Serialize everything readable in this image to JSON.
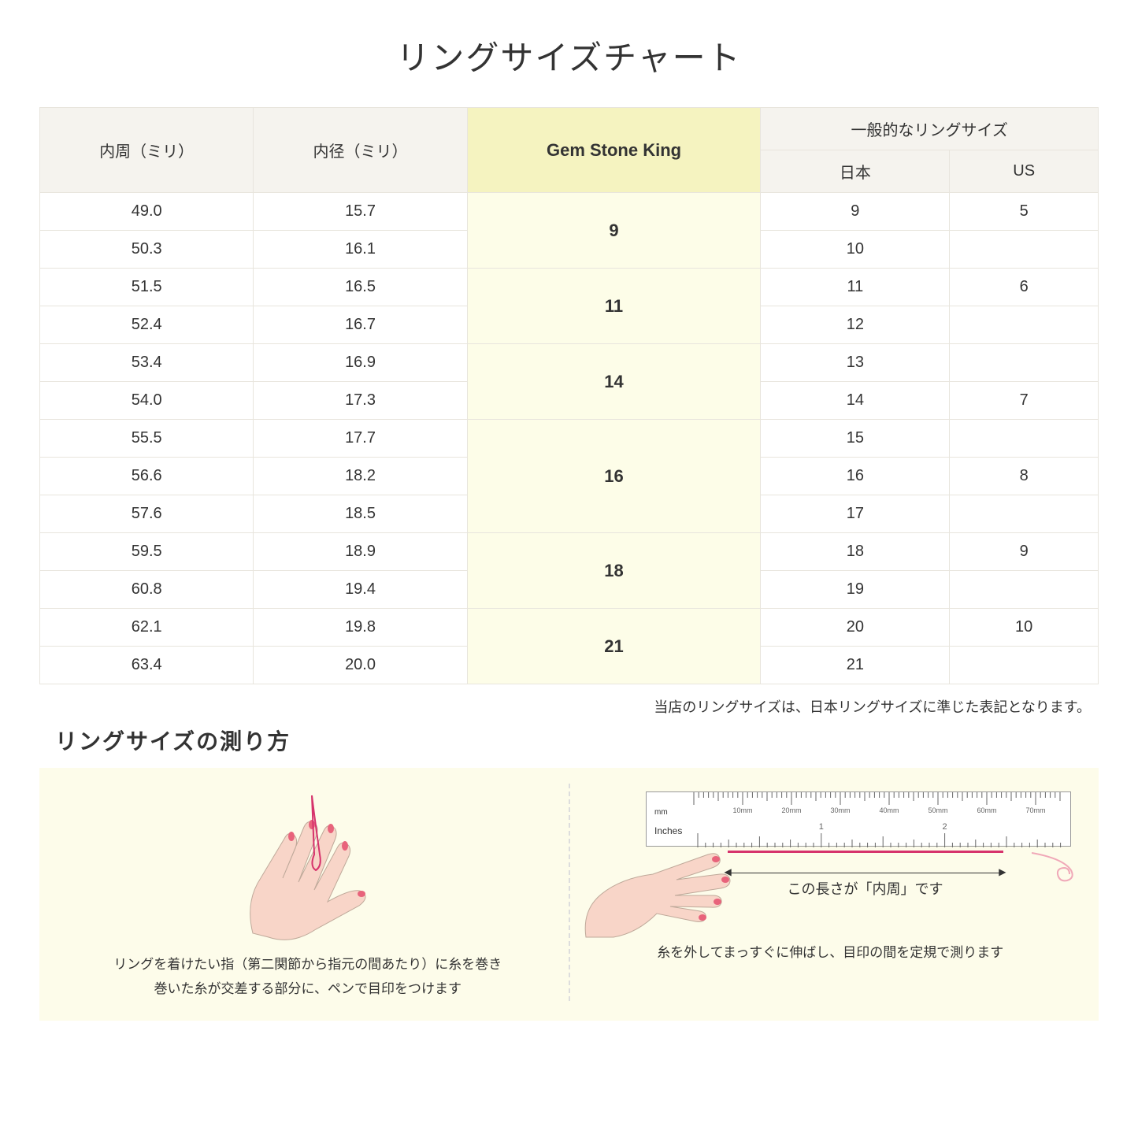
{
  "title": "リングサイズチャート",
  "headers": {
    "circumference": "内周（ミリ）",
    "diameter": "内径（ミリ）",
    "gsk": "Gem Stone King",
    "general": "一般的なリングサイズ",
    "japan": "日本",
    "us": "US"
  },
  "rows": [
    {
      "circ": "49.0",
      "dia": "15.7",
      "gsk": "9",
      "gsk_span": 2,
      "jp": "9",
      "us": "5"
    },
    {
      "circ": "50.3",
      "dia": "16.1",
      "jp": "10",
      "us": ""
    },
    {
      "circ": "51.5",
      "dia": "16.5",
      "gsk": "11",
      "gsk_span": 2,
      "jp": "11",
      "us": "6"
    },
    {
      "circ": "52.4",
      "dia": "16.7",
      "jp": "12",
      "us": ""
    },
    {
      "circ": "53.4",
      "dia": "16.9",
      "gsk": "14",
      "gsk_span": 2,
      "jp": "13",
      "us": ""
    },
    {
      "circ": "54.0",
      "dia": "17.3",
      "jp": "14",
      "us": "7"
    },
    {
      "circ": "55.5",
      "dia": "17.7",
      "gsk": "16",
      "gsk_span": 3,
      "jp": "15",
      "us": ""
    },
    {
      "circ": "56.6",
      "dia": "18.2",
      "jp": "16",
      "us": "8"
    },
    {
      "circ": "57.6",
      "dia": "18.5",
      "jp": "17",
      "us": ""
    },
    {
      "circ": "59.5",
      "dia": "18.9",
      "gsk": "18",
      "gsk_span": 2,
      "jp": "18",
      "us": "9"
    },
    {
      "circ": "60.8",
      "dia": "19.4",
      "jp": "19",
      "us": ""
    },
    {
      "circ": "62.1",
      "dia": "19.8",
      "gsk": "21",
      "gsk_span": 2,
      "jp": "20",
      "us": "10"
    },
    {
      "circ": "63.4",
      "dia": "20.0",
      "jp": "21",
      "us": ""
    }
  ],
  "note": "当店のリングサイズは、日本リングサイズに準じた表記となります。",
  "subtitle": "リングサイズの測り方",
  "instruction1": "リングを着けたい指（第二関節から指元の間あたり）に糸を巻き\n巻いた糸が交差する部分に、ペンで目印をつけます",
  "instruction2": "糸を外してまっすぐに伸ばし、目印の間を定規で測ります",
  "ruler_mm_label": "mm",
  "ruler_in_label": "Inches",
  "ruler_mm_ticks": [
    "10mm",
    "20mm",
    "30mm",
    "40mm",
    "50mm",
    "60mm",
    "70mm"
  ],
  "arrow_label": "この長さが「内周」です",
  "colors": {
    "header_bg": "#f5f3ee",
    "gsk_header_bg": "#f5f3c0",
    "gsk_cell_bg": "#fdfde8",
    "instruction_bg": "#fdfcea",
    "thread": "#d6336c",
    "skin": "#f8d5c8",
    "nail": "#e8637b"
  }
}
